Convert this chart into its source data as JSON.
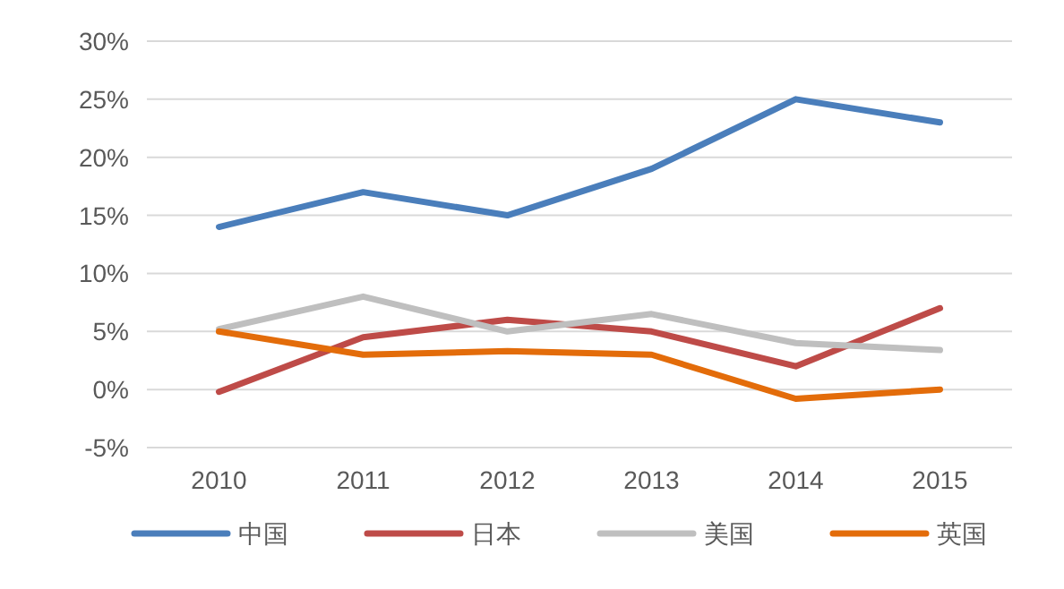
{
  "chart_data": {
    "type": "line",
    "categories": [
      "2010",
      "2011",
      "2012",
      "2013",
      "2014",
      "2015"
    ],
    "series": [
      {
        "name": "中国",
        "color": "#4a7ebb",
        "values": [
          14,
          17,
          15,
          19,
          25,
          23
        ]
      },
      {
        "name": "日本",
        "color": "#be4b48",
        "values": [
          -0.2,
          4.5,
          6,
          5,
          2,
          7
        ]
      },
      {
        "name": "美国",
        "color": "#bfbfbf",
        "values": [
          5.2,
          8,
          5,
          6.5,
          4,
          3.4
        ]
      },
      {
        "name": "英国",
        "color": "#e36c0a",
        "values": [
          5,
          3,
          3.3,
          3,
          -0.8,
          0
        ]
      }
    ],
    "ylim": [
      -5,
      30
    ],
    "yticks": [
      {
        "value": -5,
        "label": "-5%"
      },
      {
        "value": 0,
        "label": "0%"
      },
      {
        "value": 5,
        "label": "5%"
      },
      {
        "value": 10,
        "label": "10%"
      },
      {
        "value": 15,
        "label": "15%"
      },
      {
        "value": 20,
        "label": "20%"
      },
      {
        "value": 25,
        "label": "25%"
      },
      {
        "value": 30,
        "label": "30%"
      }
    ],
    "grid": "y",
    "legend": "bottom",
    "marker": "none",
    "line_style": "solid"
  }
}
